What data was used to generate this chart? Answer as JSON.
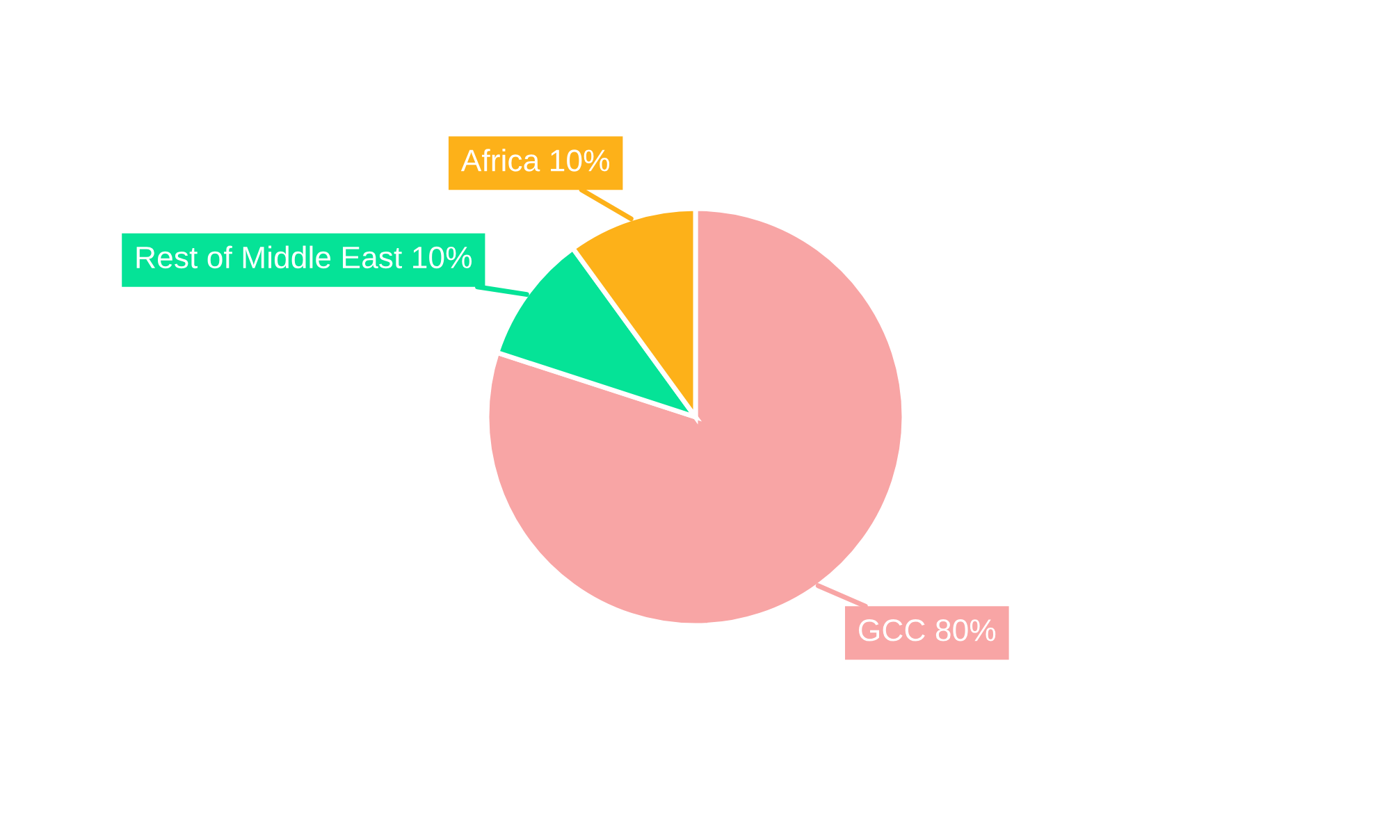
{
  "chart_data": {
    "type": "pie",
    "categories": [
      "GCC",
      "Rest of Middle East",
      "Africa"
    ],
    "values": [
      80,
      10,
      10
    ],
    "value_labels": [
      "80%",
      "10%",
      "10%"
    ],
    "colors": [
      "#f8a5a5",
      "#05e397",
      "#fdb119"
    ],
    "legend": false
  }
}
